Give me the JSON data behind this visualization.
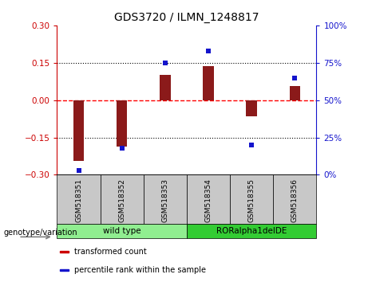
{
  "title": "GDS3720 / ILMN_1248817",
  "samples": [
    "GSM518351",
    "GSM518352",
    "GSM518353",
    "GSM518354",
    "GSM518355",
    "GSM518356"
  ],
  "red_bars": [
    -0.245,
    -0.185,
    0.1,
    0.135,
    -0.065,
    0.055
  ],
  "blue_dots_pct": [
    3,
    18,
    75,
    83,
    20,
    65
  ],
  "ylim_left": [
    -0.3,
    0.3
  ],
  "ylim_right": [
    0,
    100
  ],
  "yticks_left": [
    -0.3,
    -0.15,
    0,
    0.15,
    0.3
  ],
  "yticks_right": [
    0,
    25,
    50,
    75,
    100
  ],
  "hlines": [
    -0.15,
    0.0,
    0.15
  ],
  "hline_colors": [
    "black",
    "red",
    "black"
  ],
  "hline_styles": [
    "dotted",
    "dashed",
    "dotted"
  ],
  "bar_color": "#8B1A1A",
  "dot_color": "#1414CC",
  "groups": [
    {
      "label": "wild type",
      "indices": [
        0,
        1,
        2
      ],
      "color": "#90EE90"
    },
    {
      "label": "RORalpha1delDE",
      "indices": [
        3,
        4,
        5
      ],
      "color": "#33CC33"
    }
  ],
  "group_label": "genotype/variation",
  "legend_items": [
    {
      "label": "transformed count",
      "color": "#CC0000"
    },
    {
      "label": "percentile rank within the sample",
      "color": "#1414CC"
    }
  ],
  "left_tick_color": "#CC0000",
  "right_tick_color": "#1414CC",
  "plot_bg_color": "#ffffff",
  "tick_bg_color": "#C8C8C8",
  "title_fontsize": 10,
  "tick_fontsize": 7.5,
  "label_fontsize": 7.5,
  "bar_width": 0.25
}
